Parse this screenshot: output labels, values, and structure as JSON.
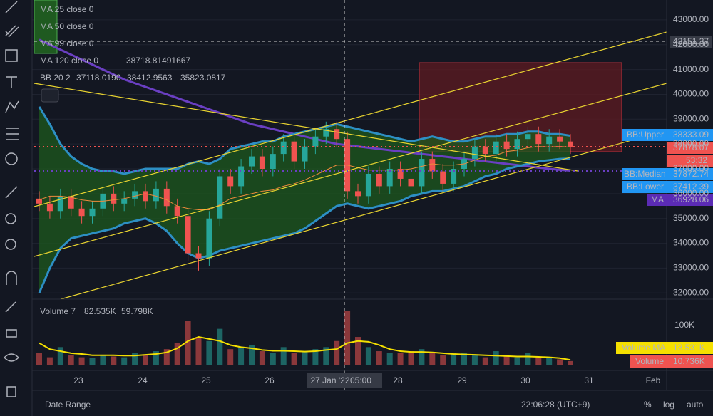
{
  "legend": {
    "ma25": "MA 25 close 0",
    "ma50": "MA 50 close 0",
    "ma99": "MA 99 close 0",
    "ma120": "MA 120 close 0",
    "ma120_value": "38718.81491667",
    "bb": "BB 20 2",
    "bb_values": [
      "37118.0190",
      "38412.9563",
      "35823.0817"
    ],
    "volume": "Volume 7",
    "volume_values": [
      "82.535K",
      "59.798K"
    ]
  },
  "price_tags": {
    "crosshair_price": "42151.37",
    "bb_upper_name": "BB:Upper",
    "bb_upper": "38333.09",
    "last_price": "37878.07",
    "countdown": "53:32",
    "bb_median_name": "BB:Median",
    "bb_median": "37872.74",
    "bb_lower_name": "BB:Lower",
    "bb_lower": "37412.39",
    "ma_name": "MA",
    "ma": "36928.06",
    "volume_tick": "100K",
    "volume_ma_name": "Volume MA",
    "volume_ma": "13.531K",
    "volume_name": "Volume",
    "volume_value": "10.736K"
  },
  "time_labels": [
    "23",
    "24",
    "25",
    "26",
    "27 Jan '22",
    "05:00",
    "28",
    "29",
    "30",
    "31",
    "Feb"
  ],
  "bottom_bar": {
    "date_range": "Date Range",
    "clock": "22:06:28 (UTC+9)",
    "percent": "%",
    "log": "log",
    "auto": "auto"
  },
  "chart_data": {
    "type": "candlestick",
    "open": [
      35800,
      35600,
      35300,
      35900,
      35400,
      35100,
      35400,
      36000,
      35600,
      35800,
      36100,
      35700,
      36200,
      35500,
      35100,
      33600,
      33400,
      35000,
      36700,
      36300,
      37100,
      37500,
      37000,
      37600,
      38100,
      37300,
      37900,
      38300,
      38600,
      38200,
      36100,
      35900,
      36800,
      36300,
      37000,
      36600,
      36300,
      37400,
      36900,
      36400,
      37000,
      37400,
      37900,
      37600,
      38100,
      37800,
      38200,
      38400,
      38000,
      38300,
      38100
    ],
    "high": [
      36100,
      35900,
      36200,
      36200,
      35700,
      35700,
      36300,
      36300,
      36100,
      36400,
      36400,
      36500,
      36500,
      35800,
      35400,
      33900,
      35300,
      37000,
      37000,
      37400,
      37800,
      37800,
      37900,
      38400,
      38400,
      38200,
      38600,
      38900,
      38900,
      38500,
      36400,
      37100,
      37100,
      37300,
      37300,
      36900,
      37700,
      37700,
      37200,
      37300,
      37700,
      38200,
      38200,
      38400,
      38400,
      38500,
      38700,
      38700,
      38600,
      38600,
      38400
    ],
    "low": [
      35300,
      35000,
      35000,
      35100,
      34800,
      34800,
      35100,
      35300,
      35300,
      35500,
      35400,
      35400,
      35200,
      34800,
      33300,
      32900,
      33100,
      34700,
      36000,
      36000,
      36800,
      36700,
      36700,
      37300,
      37000,
      37000,
      37600,
      38000,
      37900,
      35800,
      35600,
      35600,
      36000,
      36000,
      36300,
      36000,
      36000,
      36600,
      36100,
      36100,
      36700,
      37100,
      37300,
      37300,
      37500,
      37500,
      37900,
      37700,
      37700,
      37800,
      37600
    ],
    "close": [
      35600,
      35300,
      35900,
      35400,
      35100,
      35400,
      36000,
      35600,
      35800,
      36100,
      35700,
      36200,
      35500,
      35100,
      33600,
      33400,
      35000,
      36700,
      36300,
      37100,
      37500,
      37000,
      37600,
      38100,
      37300,
      37900,
      38300,
      38600,
      38200,
      36100,
      35900,
      36800,
      36300,
      37000,
      36600,
      36300,
      37400,
      36900,
      36400,
      37000,
      37400,
      37900,
      37600,
      38100,
      37800,
      38200,
      38400,
      38000,
      38300,
      38100,
      37878
    ],
    "bb_upper": [
      39500,
      38800,
      38000,
      37500,
      37200,
      37000,
      36900,
      36900,
      36800,
      36900,
      37000,
      37000,
      37000,
      37000,
      37200,
      37300,
      37200,
      37400,
      37800,
      37900,
      38000,
      38100,
      38100,
      38300,
      38400,
      38500,
      38600,
      38700,
      38800,
      38700,
      38600,
      38500,
      38400,
      38300,
      38200,
      38100,
      38200,
      38300,
      38200,
      38100,
      38100,
      38200,
      38300,
      38300,
      38400,
      38400,
      38500,
      38500,
      38400,
      38400,
      38333
    ],
    "bb_median": [
      35750,
      35900,
      35900,
      35850,
      35750,
      35700,
      35700,
      35750,
      35800,
      35900,
      36000,
      35900,
      35750,
      35500,
      35400,
      35350,
      35350,
      35550,
      35800,
      35900,
      36000,
      36100,
      36150,
      36300,
      36400,
      36550,
      36750,
      36950,
      37150,
      37150,
      37050,
      36950,
      36950,
      36950,
      36950,
      37000,
      37100,
      37200,
      37150,
      37150,
      37200,
      37350,
      37500,
      37550,
      37700,
      37750,
      37850,
      37900,
      37880,
      37900,
      37873
    ],
    "bb_lower": [
      32000,
      33000,
      33800,
      34200,
      34300,
      34400,
      34500,
      34600,
      34800,
      34900,
      35000,
      34800,
      34500,
      34000,
      33600,
      33400,
      33500,
      33700,
      33800,
      33900,
      34000,
      34100,
      34200,
      34300,
      34400,
      34600,
      34900,
      35200,
      35500,
      35600,
      35500,
      35400,
      35500,
      35600,
      35700,
      35900,
      36000,
      36100,
      36100,
      36200,
      36300,
      36500,
      36700,
      36800,
      37000,
      37100,
      37200,
      37300,
      37350,
      37400,
      37412
    ],
    "ma120": [
      42200,
      42000,
      41800,
      41600,
      41400,
      41200,
      41000,
      40800,
      40600,
      40450,
      40300,
      40150,
      40000,
      39850,
      39700,
      39550,
      39400,
      39250,
      39100,
      38950,
      38800,
      38700,
      38600,
      38500,
      38400,
      38300,
      38200,
      38100,
      38000,
      37950,
      37900,
      37850,
      37800,
      37750,
      37700,
      37650,
      37600,
      37550,
      37500,
      37450,
      37400,
      37350,
      37300,
      37250,
      37200,
      37150,
      37100,
      37050,
      37000,
      36960,
      36928
    ],
    "volume": [
      30,
      20,
      45,
      25,
      20,
      18,
      25,
      22,
      20,
      30,
      25,
      35,
      40,
      55,
      110,
      70,
      60,
      90,
      40,
      45,
      50,
      35,
      30,
      45,
      30,
      35,
      40,
      45,
      60,
      135,
      70,
      45,
      35,
      30,
      30,
      35,
      40,
      30,
      25,
      30,
      30,
      25,
      20,
      35,
      25,
      20,
      30,
      20,
      20,
      15,
      10.736
    ],
    "volume_ma": [
      55,
      40,
      35,
      30,
      28,
      25,
      25,
      25,
      24,
      24,
      26,
      28,
      32,
      42,
      60,
      70,
      65,
      60,
      50,
      45,
      42,
      38,
      36,
      36,
      35,
      34,
      35,
      38,
      40,
      55,
      60,
      58,
      50,
      40,
      35,
      33,
      33,
      32,
      30,
      28,
      27,
      26,
      25,
      24,
      23,
      22,
      22,
      21,
      20,
      18,
      13.531
    ],
    "up_color": "#26a69a",
    "down_color": "#ef5350",
    "bb_color": "#2d8fc4",
    "ma_color": "#6a3fc2",
    "volume_ma_color": "#f5e000",
    "ylim": [
      31750,
      43800
    ],
    "yticks": [
      {
        "value": 43000,
        "label": "43000.00"
      },
      {
        "value": 42000,
        "label": "42000.00"
      },
      {
        "value": 41000,
        "label": "41000.00"
      },
      {
        "value": 40000,
        "label": "40000.00"
      },
      {
        "value": 39000,
        "label": "39000.00"
      },
      {
        "value": 38000,
        "label": "38000.00"
      },
      {
        "value": 37000,
        "label": "37000.00"
      },
      {
        "value": 36000,
        "label": "36000.00"
      },
      {
        "value": 35000,
        "label": "35000.00"
      },
      {
        "value": 34000,
        "label": "34000.00"
      },
      {
        "value": 33000,
        "label": "33000.00"
      },
      {
        "value": 32000,
        "label": "32000.00"
      }
    ],
    "vlim": [
      0,
      163
    ]
  }
}
